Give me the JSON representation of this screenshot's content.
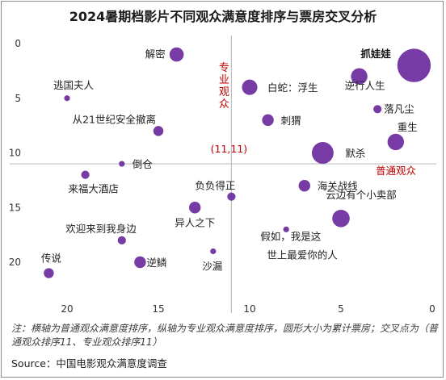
{
  "title": "2024暑期档影片不同观众满意度排序与票房交叉分析",
  "note": "注：横轴为普通观众满意度排序，纵轴为专业观众满意度排序，圆形大小为累计票房；交叉点为（普通观众排序11、专业观众排序11）",
  "source": "Source：中国电影观众满意度调查",
  "colors": {
    "bubble": "#7030a0",
    "axis_label": "#c00000",
    "crosshair": "#bfbfbf"
  },
  "chart_data": {
    "type": "scatter",
    "title": "2024暑期档影片不同观众满意度排序与票房交叉分析",
    "xlabel": "普通观众",
    "ylabel": "专业观众",
    "xlim": [
      22,
      0
    ],
    "ylim": [
      0,
      22
    ],
    "x_reversed": true,
    "y_reversed": true,
    "xticks": [
      20,
      15,
      10,
      5,
      0
    ],
    "yticks": [
      0,
      5,
      10,
      15,
      20
    ],
    "crosshair": {
      "x": 11,
      "y": 11,
      "label": "(11,11)"
    },
    "size_encoding": "累计票房",
    "points": [
      {
        "name": "抓娃娃",
        "x": 1,
        "y": 2,
        "size": 33
      },
      {
        "name": "解密",
        "x": 14,
        "y": 1,
        "size": 6
      },
      {
        "name": "逆行人生",
        "x": 4,
        "y": 3,
        "size": 8
      },
      {
        "name": "白蛇：浮生",
        "x": 10,
        "y": 4,
        "size": 7
      },
      {
        "name": "默杀",
        "x": 6,
        "y": 10,
        "size": 14
      },
      {
        "name": "重生",
        "x": 2,
        "y": 9,
        "size": 8
      },
      {
        "name": "落凡尘",
        "x": 3,
        "y": 6,
        "size": 2
      },
      {
        "name": "刺猬",
        "x": 9,
        "y": 7,
        "size": 4
      },
      {
        "name": "从21世纪安全撤离",
        "x": 15,
        "y": 8,
        "size": 3
      },
      {
        "name": "逃国夫人",
        "x": 20,
        "y": 5,
        "size": 1
      },
      {
        "name": "倒仓",
        "x": 17,
        "y": 11,
        "size": 1
      },
      {
        "name": "来福大酒店",
        "x": 19,
        "y": 12,
        "size": 2
      },
      {
        "name": "负负得正",
        "x": 11,
        "y": 14,
        "size": 2
      },
      {
        "name": "海关战线",
        "x": 7,
        "y": 13,
        "size": 4
      },
      {
        "name": "云边有个小卖部",
        "x": 5,
        "y": 16,
        "size": 9
      },
      {
        "name": "异人之下",
        "x": 13,
        "y": 15,
        "size": 4
      },
      {
        "name": "欢迎来到我身边",
        "x": 17,
        "y": 18,
        "size": 2
      },
      {
        "name": "假如，我是这世上最爱你的人",
        "x": 8,
        "y": 17,
        "size": 1
      },
      {
        "name": "沙漏",
        "x": 12,
        "y": 19,
        "size": 1
      },
      {
        "name": "逆鳞",
        "x": 16,
        "y": 20,
        "size": 4
      },
      {
        "name": "传说",
        "x": 21,
        "y": 21,
        "size": 3
      }
    ]
  }
}
